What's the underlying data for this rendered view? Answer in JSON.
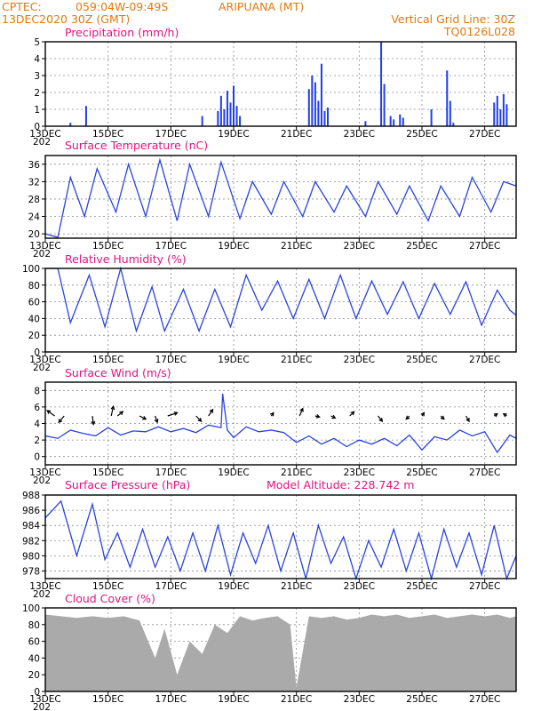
{
  "header": {
    "source": "CPTEC:",
    "coords": "059:04W-09:49S",
    "location": "ARIPUANA (MT)",
    "date": "13DEC2020 30Z (GMT)",
    "grid_note": "Vertical Grid Line: 30Z",
    "code": "TQ0126L028"
  },
  "x_axis": {
    "start": "13DEC",
    "ticks": [
      "13DEC",
      "15DEC",
      "17DEC",
      "19DEC",
      "21DEC",
      "23DEC",
      "25DEC",
      "27DEC"
    ],
    "tick_offsets_days": [
      0,
      2,
      4,
      6,
      8,
      10,
      12,
      14
    ],
    "sub_label": "202"
  },
  "colors": {
    "line": "#2a44e0",
    "bar": "#1f3ef0",
    "cloud": "#aaaaaa",
    "wind": "#000000",
    "title": "#e0147f",
    "header": "#e07a10"
  },
  "chart_data": [
    {
      "id": "precip",
      "type": "bar",
      "title": "Precipitation (mm/h)",
      "ylim": [
        0,
        5
      ],
      "yticks": [
        0,
        1,
        2,
        3,
        4,
        5
      ],
      "x_days": [
        0.8,
        1.3,
        5.0,
        5.5,
        5.6,
        5.7,
        5.8,
        5.9,
        6.0,
        6.1,
        6.2,
        8.4,
        8.5,
        8.6,
        8.7,
        8.8,
        8.9,
        9.0,
        10.2,
        10.7,
        10.8,
        11.0,
        11.1,
        11.3,
        11.4,
        12.3,
        12.8,
        12.9,
        13.0,
        14.3,
        14.4,
        14.5,
        14.6,
        14.7
      ],
      "values": [
        0.2,
        1.2,
        0.6,
        0.9,
        1.8,
        1.0,
        2.1,
        1.4,
        2.4,
        1.2,
        0.6,
        2.2,
        3.0,
        2.6,
        1.5,
        3.7,
        0.9,
        1.1,
        0.3,
        5.0,
        2.5,
        0.6,
        0.4,
        0.7,
        0.5,
        1.0,
        3.3,
        1.5,
        0.2,
        1.4,
        1.8,
        1.0,
        1.9,
        1.3
      ]
    },
    {
      "id": "temp",
      "type": "line",
      "title": "Surface Temperature (nC)",
      "ylim": [
        19,
        38
      ],
      "yticks": [
        20,
        24,
        28,
        32,
        36
      ],
      "x_days": [
        0,
        0.4,
        0.8,
        1.25,
        1.65,
        2.25,
        2.65,
        3.2,
        3.65,
        4.2,
        4.6,
        5.2,
        5.6,
        6.2,
        6.6,
        7.2,
        7.6,
        8.2,
        8.6,
        9.2,
        9.6,
        10.2,
        10.6,
        11.2,
        11.6,
        12.2,
        12.6,
        13.2,
        13.6,
        14.2,
        14.6,
        15.0
      ],
      "values": [
        20,
        19.2,
        33,
        24,
        35,
        25,
        36,
        24,
        37,
        23,
        36,
        24,
        36.5,
        23.5,
        32,
        24.5,
        32,
        24,
        32,
        25,
        31,
        24,
        32,
        24.5,
        31,
        23,
        31,
        24,
        33,
        25,
        32,
        31
      ]
    },
    {
      "id": "rh",
      "type": "line",
      "title": "Relative Humidity (%)",
      "ylim": [
        0,
        100
      ],
      "yticks": [
        0,
        20,
        40,
        60,
        80,
        100
      ],
      "x_days": [
        0,
        0.4,
        0.8,
        1.4,
        1.9,
        2.4,
        2.9,
        3.4,
        3.8,
        4.4,
        4.9,
        5.4,
        5.9,
        6.4,
        6.9,
        7.4,
        7.9,
        8.4,
        8.9,
        9.4,
        9.9,
        10.4,
        10.9,
        11.4,
        11.9,
        12.4,
        12.9,
        13.4,
        13.9,
        14.4,
        14.8,
        15.0
      ],
      "values": [
        100,
        100,
        35,
        92,
        30,
        100,
        25,
        78,
        25,
        75,
        25,
        75,
        30,
        92,
        50,
        85,
        40,
        87,
        40,
        92,
        40,
        85,
        45,
        84,
        40,
        82,
        45,
        84,
        32,
        74,
        50,
        44
      ]
    },
    {
      "id": "wind",
      "type": "line",
      "title": "Surface Wind (m/s)",
      "ylim": [
        -1,
        9
      ],
      "yticks": [
        0,
        2,
        4,
        6,
        8
      ],
      "x_days": [
        0,
        0.4,
        0.8,
        1.2,
        1.6,
        2.0,
        2.4,
        2.8,
        3.2,
        3.6,
        4.0,
        4.4,
        4.8,
        5.2,
        5.6,
        5.65,
        5.8,
        6.0,
        6.4,
        6.8,
        7.2,
        7.6,
        8.0,
        8.4,
        8.8,
        9.2,
        9.6,
        10.0,
        10.4,
        10.8,
        11.2,
        11.6,
        12.0,
        12.4,
        12.8,
        13.2,
        13.6,
        14.0,
        14.4,
        14.8,
        15.0
      ],
      "values": [
        2.5,
        2.2,
        3.2,
        2.8,
        2.5,
        3.5,
        2.6,
        3.1,
        3.0,
        3.6,
        3.0,
        3.4,
        2.9,
        3.8,
        3.5,
        7.6,
        3.2,
        2.3,
        3.6,
        3.0,
        3.2,
        2.9,
        1.7,
        2.5,
        1.5,
        2.2,
        1.2,
        2.0,
        1.5,
        2.2,
        1.3,
        2.6,
        0.8,
        2.4,
        2.0,
        3.2,
        2.5,
        3.0,
        0.5,
        2.6,
        2.2
      ],
      "barbs": [
        {
          "day": 0.3,
          "u": -0.7,
          "v": 0.5
        },
        {
          "day": 0.6,
          "u": -0.5,
          "v": -0.6
        },
        {
          "day": 1.5,
          "u": 0.1,
          "v": -0.8
        },
        {
          "day": 2.1,
          "u": 0.2,
          "v": 0.9
        },
        {
          "day": 2.3,
          "u": 0.5,
          "v": 0.4
        },
        {
          "day": 3.0,
          "u": 0.6,
          "v": -0.3
        },
        {
          "day": 3.5,
          "u": 0.2,
          "v": -0.6
        },
        {
          "day": 3.9,
          "u": 0.9,
          "v": 0.3
        },
        {
          "day": 4.8,
          "u": 0.5,
          "v": -0.5
        },
        {
          "day": 5.2,
          "u": 0.4,
          "v": 0.6
        },
        {
          "day": 7.2,
          "u": 0.2,
          "v": 0.3
        },
        {
          "day": 8.1,
          "u": 0.3,
          "v": 0.7
        },
        {
          "day": 8.6,
          "u": 0.4,
          "v": -0.1
        },
        {
          "day": 9.1,
          "u": 0.4,
          "v": -0.2
        },
        {
          "day": 9.7,
          "u": 0.4,
          "v": 0.4
        },
        {
          "day": 10.6,
          "u": 0.4,
          "v": -0.5
        },
        {
          "day": 11.6,
          "u": -0.3,
          "v": -0.3
        },
        {
          "day": 12.0,
          "u": 0.2,
          "v": 0.3
        },
        {
          "day": 12.6,
          "u": 0.3,
          "v": -0.3
        },
        {
          "day": 13.4,
          "u": 0.3,
          "v": -0.5
        },
        {
          "day": 14.3,
          "u": 0.3,
          "v": 0.2
        },
        {
          "day": 14.7,
          "u": -0.3,
          "v": 0.2
        }
      ]
    },
    {
      "id": "pressure",
      "type": "line",
      "title": "Surface Pressure (hPa)",
      "annotation": "Model Altitude: 228.742 m",
      "ylim": [
        977,
        988
      ],
      "yticks": [
        978,
        980,
        982,
        984,
        986,
        988
      ],
      "x_days": [
        0,
        0.5,
        1.0,
        1.5,
        1.9,
        2.3,
        2.7,
        3.1,
        3.5,
        3.9,
        4.3,
        4.7,
        5.1,
        5.5,
        5.9,
        6.3,
        6.7,
        7.1,
        7.5,
        7.9,
        8.3,
        8.7,
        9.1,
        9.5,
        9.9,
        10.3,
        10.7,
        11.1,
        11.5,
        11.9,
        12.3,
        12.7,
        13.1,
        13.5,
        13.9,
        14.3,
        14.7,
        15.0
      ],
      "values": [
        985,
        987.2,
        980,
        986.8,
        979.5,
        983,
        978.5,
        983.5,
        978.5,
        982.5,
        978,
        983,
        978,
        984,
        977.5,
        983,
        979,
        984,
        978,
        983,
        977,
        984,
        979,
        982.5,
        977,
        982,
        978.5,
        983.5,
        978,
        983,
        977,
        983.5,
        978.5,
        983,
        977.5,
        984,
        977,
        980
      ]
    },
    {
      "id": "cloud",
      "type": "area",
      "title": "Cloud Cover (%)",
      "ylim": [
        0,
        100
      ],
      "yticks": [
        0,
        20,
        40,
        60,
        80,
        100
      ],
      "x_days": [
        0,
        0.5,
        1.0,
        1.5,
        2.0,
        2.5,
        3.0,
        3.5,
        3.8,
        4.2,
        4.6,
        5.0,
        5.4,
        5.8,
        6.2,
        6.6,
        7.0,
        7.4,
        7.8,
        8.0,
        8.4,
        8.8,
        9.2,
        9.6,
        10.0,
        10.4,
        10.8,
        11.2,
        11.6,
        12.0,
        12.4,
        12.8,
        13.2,
        13.6,
        14.0,
        14.4,
        14.8,
        15.0
      ],
      "values": [
        92,
        90,
        88,
        90,
        88,
        90,
        85,
        40,
        75,
        20,
        60,
        45,
        80,
        70,
        90,
        85,
        88,
        90,
        80,
        5,
        90,
        88,
        90,
        86,
        88,
        92,
        90,
        92,
        88,
        90,
        92,
        88,
        90,
        92,
        90,
        92,
        88,
        90
      ]
    }
  ]
}
